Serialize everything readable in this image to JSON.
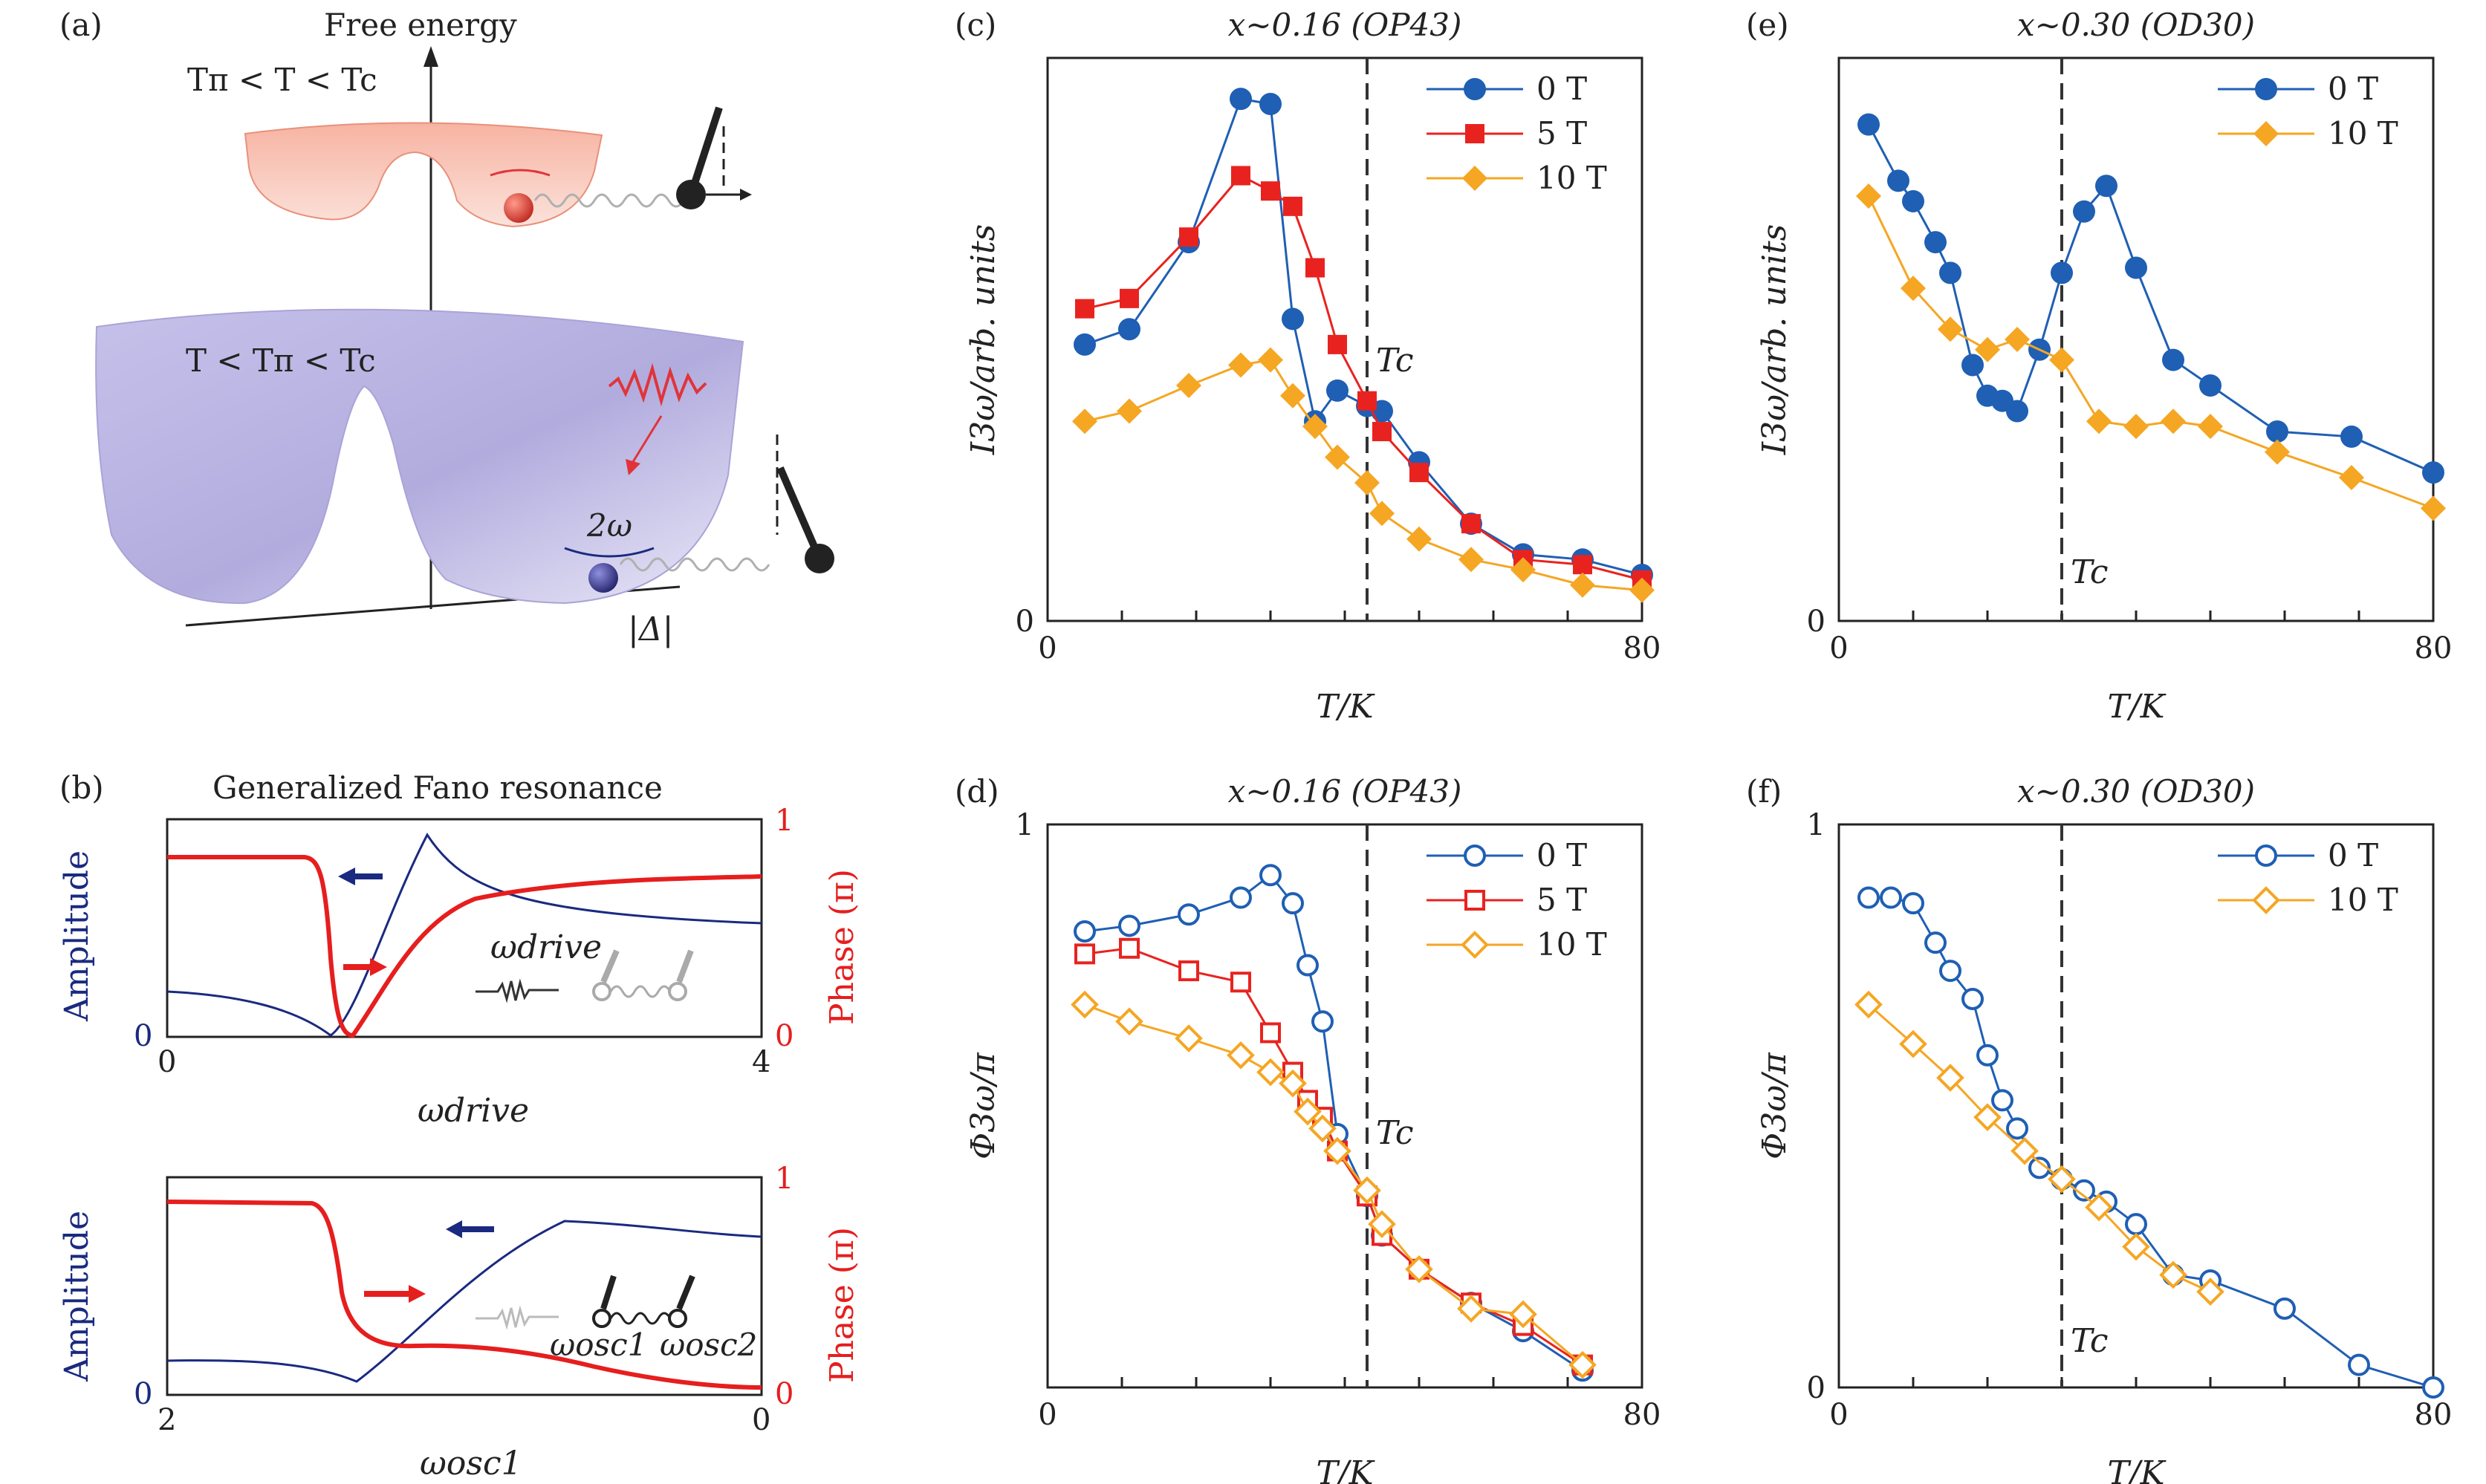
{
  "labels": {
    "a": "(a)",
    "b": "(b)",
    "c": "(c)",
    "d": "(d)",
    "e": "(e)",
    "f": "(f)"
  },
  "panel_a": {
    "title": "Free energy",
    "upper_label": "Tπ < T < Tc",
    "lower_label": "T < Tπ < Tc",
    "two_omega": "2ω",
    "axis_label": "|Δ|",
    "colors": {
      "upper_well": "#f4a28c",
      "lower_well": "#b4aee0",
      "pulse": "#e0343a",
      "ball_upper": "#d9473e",
      "ball_lower": "#3b3b8f"
    }
  },
  "panel_b": {
    "title": "Generalized Fano resonance",
    "top": {
      "left_axis": "Amplitude",
      "right_axis": "Phase (π)",
      "x_ticks": [
        "0",
        "4"
      ],
      "y_left_zero": "0",
      "y_right_one": "1",
      "y_right_zero": "0",
      "xlabel": "ωdrive",
      "inset_label": "ωdrive"
    },
    "bottom": {
      "left_axis": "Amplitude",
      "right_axis": "Phase (π)",
      "x_ticks": [
        "2",
        "0"
      ],
      "y_left_zero": "0",
      "y_right_one": "1",
      "y_right_zero": "0",
      "xlabel": "ωosc1",
      "inset_osc1": "ωosc1",
      "inset_osc2": "ωosc2"
    },
    "colors": {
      "amplitude": "#1a2a80",
      "phase": "#e61e1e"
    }
  },
  "tc_label": "Tc",
  "chart_data": [
    {
      "id": "c",
      "type": "line",
      "title": "x∼0.16 (OP43)",
      "xlabel": "T/K",
      "ylabel": "I3ω/arb. units",
      "x_ticks": [
        "0",
        "80"
      ],
      "y_ticks": [
        "0"
      ],
      "xlim": [
        0,
        80
      ],
      "ylim": [
        0,
        1.1
      ],
      "tc": 43,
      "series": [
        {
          "name": "0 T",
          "color": "#1f5fb4",
          "marker": "circle-filled",
          "x": [
            5,
            11,
            19,
            26,
            30,
            33,
            36,
            39,
            43,
            45,
            50,
            57,
            64,
            72,
            80
          ],
          "y": [
            0.54,
            0.57,
            0.74,
            1.02,
            1.01,
            0.59,
            0.39,
            0.45,
            0.42,
            0.41,
            0.31,
            0.19,
            0.13,
            0.12,
            0.09
          ]
        },
        {
          "name": "5 T",
          "color": "#e8231f",
          "marker": "square-filled",
          "x": [
            5,
            11,
            19,
            26,
            30,
            33,
            36,
            39,
            43,
            45,
            50,
            57,
            64,
            72,
            80
          ],
          "y": [
            0.61,
            0.63,
            0.75,
            0.87,
            0.84,
            0.81,
            0.69,
            0.54,
            0.43,
            0.37,
            0.29,
            0.19,
            0.12,
            0.11,
            0.08
          ]
        },
        {
          "name": "10 T",
          "color": "#f5a623",
          "marker": "diamond-filled",
          "x": [
            5,
            11,
            19,
            26,
            30,
            33,
            36,
            39,
            43,
            45,
            50,
            57,
            64,
            72,
            80
          ],
          "y": [
            0.39,
            0.41,
            0.46,
            0.5,
            0.51,
            0.44,
            0.38,
            0.32,
            0.27,
            0.21,
            0.16,
            0.12,
            0.1,
            0.07,
            0.06
          ]
        }
      ]
    },
    {
      "id": "d",
      "type": "line",
      "title": "x∼0.16 (OP43)",
      "xlabel": "T/K",
      "ylabel": "Φ3ω/π",
      "x_ticks": [
        "0",
        "80"
      ],
      "y_ticks": [
        "1"
      ],
      "xlim": [
        0,
        80
      ],
      "ylim": [
        0,
        1
      ],
      "tc": 43,
      "series": [
        {
          "name": "0 T",
          "color": "#1f5fb4",
          "marker": "circle-open",
          "x": [
            5,
            11,
            19,
            26,
            30,
            33,
            35,
            37,
            39,
            43,
            45,
            50,
            57,
            64,
            72
          ],
          "y": [
            0.81,
            0.82,
            0.84,
            0.87,
            0.91,
            0.86,
            0.75,
            0.65,
            0.45,
            0.34,
            0.27,
            0.21,
            0.15,
            0.1,
            0.03
          ]
        },
        {
          "name": "5 T",
          "color": "#e8231f",
          "marker": "square-open",
          "x": [
            5,
            11,
            19,
            26,
            30,
            33,
            35,
            37,
            39,
            43,
            45,
            50,
            57,
            64,
            72
          ],
          "y": [
            0.77,
            0.78,
            0.74,
            0.72,
            0.63,
            0.56,
            0.51,
            0.48,
            0.42,
            0.34,
            0.27,
            0.21,
            0.15,
            0.11,
            0.04
          ]
        },
        {
          "name": "10 T",
          "color": "#f5a623",
          "marker": "diamond-open",
          "x": [
            5,
            11,
            19,
            26,
            30,
            33,
            35,
            37,
            39,
            43,
            45,
            50,
            57,
            64,
            72
          ],
          "y": [
            0.68,
            0.65,
            0.62,
            0.59,
            0.56,
            0.54,
            0.49,
            0.46,
            0.42,
            0.35,
            0.29,
            0.21,
            0.14,
            0.13,
            0.04
          ]
        }
      ]
    },
    {
      "id": "e",
      "type": "line",
      "title": "x∼0.30 (OD30)",
      "xlabel": "T/K",
      "ylabel": "I3ω/arb. units",
      "x_ticks": [
        "0",
        "80"
      ],
      "y_ticks": [
        "0"
      ],
      "xlim": [
        0,
        80
      ],
      "ylim": [
        0,
        1.1
      ],
      "tc": 30,
      "series": [
        {
          "name": "0 T",
          "color": "#1f5fb4",
          "marker": "circle-filled",
          "x": [
            4,
            8,
            10,
            13,
            15,
            18,
            20,
            22,
            24,
            27,
            30,
            33,
            36,
            40,
            45,
            50,
            59,
            69,
            80
          ],
          "y": [
            0.97,
            0.86,
            0.82,
            0.74,
            0.68,
            0.5,
            0.44,
            0.43,
            0.41,
            0.53,
            0.68,
            0.8,
            0.85,
            0.69,
            0.51,
            0.46,
            0.37,
            0.36,
            0.29
          ]
        },
        {
          "name": "10 T",
          "color": "#f5a623",
          "marker": "diamond-filled",
          "x": [
            4,
            10,
            15,
            20,
            24,
            30,
            35,
            40,
            45,
            50,
            59,
            69,
            80
          ],
          "y": [
            0.83,
            0.65,
            0.57,
            0.53,
            0.55,
            0.51,
            0.39,
            0.38,
            0.39,
            0.38,
            0.33,
            0.28,
            0.22
          ]
        }
      ]
    },
    {
      "id": "f",
      "type": "line",
      "title": "x∼0.30 (OD30)",
      "xlabel": "T/K",
      "ylabel": "Φ3ω/π",
      "x_ticks": [
        "0",
        "80"
      ],
      "y_ticks": [
        "1",
        "0"
      ],
      "xlim": [
        0,
        80
      ],
      "ylim": [
        0,
        1
      ],
      "tc": 30,
      "series": [
        {
          "name": "0 T",
          "color": "#1f5fb4",
          "marker": "circle-open",
          "x": [
            4,
            7,
            10,
            13,
            15,
            18,
            20,
            22,
            24,
            27,
            30,
            33,
            36,
            40,
            45,
            50,
            60,
            70,
            80
          ],
          "y": [
            0.87,
            0.87,
            0.86,
            0.79,
            0.74,
            0.69,
            0.59,
            0.51,
            0.46,
            0.39,
            0.37,
            0.35,
            0.33,
            0.29,
            0.2,
            0.19,
            0.14,
            0.04,
            0.0
          ]
        },
        {
          "name": "10 T",
          "color": "#f5a623",
          "marker": "diamond-open",
          "x": [
            4,
            10,
            15,
            20,
            25,
            30,
            35,
            40,
            45,
            50
          ],
          "y": [
            0.68,
            0.61,
            0.55,
            0.48,
            0.42,
            0.37,
            0.32,
            0.25,
            0.2,
            0.17
          ]
        }
      ]
    }
  ]
}
